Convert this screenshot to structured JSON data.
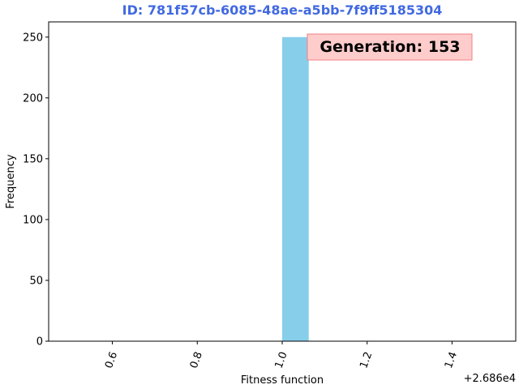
{
  "chart_data": {
    "type": "bar",
    "title": "ID: 781f57cb-6085-48ae-a5bb-7f9ff5185304",
    "xlabel": "Fitness function",
    "ylabel": "Frequency",
    "x_offset_label": "+2.686e4",
    "xlim": [
      0.45,
      1.55
    ],
    "ylim": [
      0,
      262.5
    ],
    "x_ticks": [
      0.6,
      0.8,
      1.0,
      1.2,
      1.4
    ],
    "x_tick_labels": [
      "0.6",
      "0.8",
      "1.0",
      "1.2",
      "1.4"
    ],
    "y_ticks": [
      0,
      50,
      100,
      150,
      200,
      250
    ],
    "y_tick_labels": [
      "0",
      "50",
      "100",
      "150",
      "200",
      "250"
    ],
    "bins": [
      {
        "x0": 1.0,
        "x1": 1.0625,
        "count": 250
      }
    ],
    "annotation": "Generation: 153",
    "grid": false,
    "colors": {
      "bar": "#87ceeb",
      "title": "#4169e1",
      "annotation_fill": "#ffcccc",
      "annotation_edge": "#f08080"
    }
  }
}
